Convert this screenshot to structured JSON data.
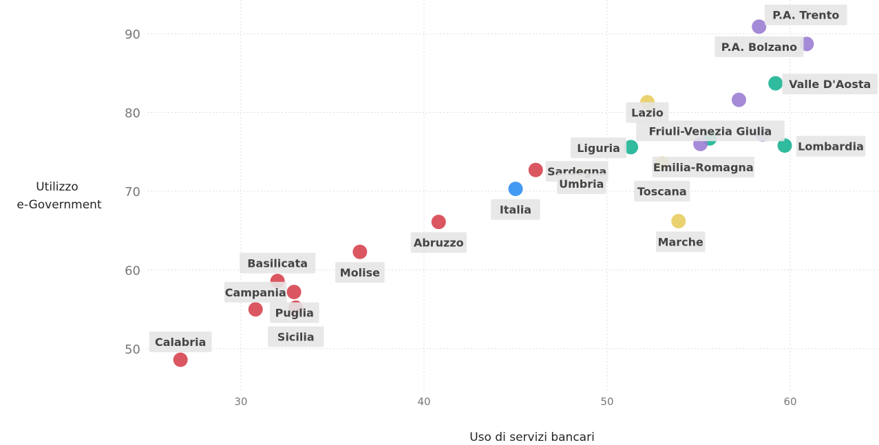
{
  "chart_data": {
    "type": "scatter",
    "title": "",
    "xlabel": "Uso di servizi bancari",
    "ylabel_lines": [
      "Utilizzo",
      "e-Government"
    ],
    "xlim": [
      25,
      65
    ],
    "ylim": [
      45,
      95
    ],
    "xticks": [
      "30",
      "40",
      "50",
      "60"
    ],
    "yticks": [
      "50",
      "60",
      "70",
      "80",
      "90"
    ],
    "grid": true,
    "legend": "none",
    "colors": {
      "red": "#d64550",
      "yellow": "#e8cd5f",
      "teal": "#1ab394",
      "purple": "#9b7dd4",
      "blue": "#2f8ff2"
    },
    "points": [
      {
        "label": "P.A. Trento",
        "x": 58.3,
        "y": 90.9,
        "color": "purple"
      },
      {
        "label": "P.A. Bolzano",
        "x": 60.9,
        "y": 88.7,
        "color": "purple"
      },
      {
        "label": "Valle D'Aosta",
        "x": 59.2,
        "y": 83.7,
        "color": "teal"
      },
      {
        "label": "Lazio",
        "x": 52.2,
        "y": 81.3,
        "color": "yellow"
      },
      {
        "label": "",
        "x": 57.2,
        "y": 81.6,
        "color": "purple"
      },
      {
        "label": "Friuli-Venezia Giulia",
        "x": 55.6,
        "y": 76.7,
        "color": "teal"
      },
      {
        "label": "",
        "x": 55.1,
        "y": 76.0,
        "color": "purple"
      },
      {
        "label": "",
        "x": 58.5,
        "y": 77.2,
        "color": "purple"
      },
      {
        "label": "Lombardia",
        "x": 59.7,
        "y": 75.8,
        "color": "teal"
      },
      {
        "label": "Liguria",
        "x": 51.3,
        "y": 75.6,
        "color": "teal"
      },
      {
        "label": "Emilia-Romagna",
        "x": 53.0,
        "y": 73.5,
        "color": "yellow"
      },
      {
        "label": "Toscana",
        "x": 53.0,
        "y": 73.5,
        "color": "yellow"
      },
      {
        "label": "Sardegna",
        "x": 46.1,
        "y": 72.7,
        "color": "red"
      },
      {
        "label": "Umbria",
        "x": 48.6,
        "y": 72.0,
        "color": "yellow"
      },
      {
        "label": "Italia",
        "x": 45.0,
        "y": 70.3,
        "color": "blue"
      },
      {
        "label": "Marche",
        "x": 53.9,
        "y": 66.2,
        "color": "yellow"
      },
      {
        "label": "Abruzzo",
        "x": 40.8,
        "y": 66.1,
        "color": "red"
      },
      {
        "label": "Molise",
        "x": 36.5,
        "y": 62.3,
        "color": "red"
      },
      {
        "label": "Basilicata",
        "x": 32.0,
        "y": 58.6,
        "color": "red"
      },
      {
        "label": "",
        "x": 32.9,
        "y": 57.2,
        "color": "red"
      },
      {
        "label": "Campania",
        "x": 30.8,
        "y": 55.0,
        "color": "red"
      },
      {
        "label": "Puglia",
        "x": 33.0,
        "y": 55.2,
        "color": "red"
      },
      {
        "label": "Sicilia",
        "x": 33.0,
        "y": 55.2,
        "color": "red"
      },
      {
        "label": "Calabria",
        "x": 26.7,
        "y": 48.6,
        "color": "red"
      }
    ]
  }
}
